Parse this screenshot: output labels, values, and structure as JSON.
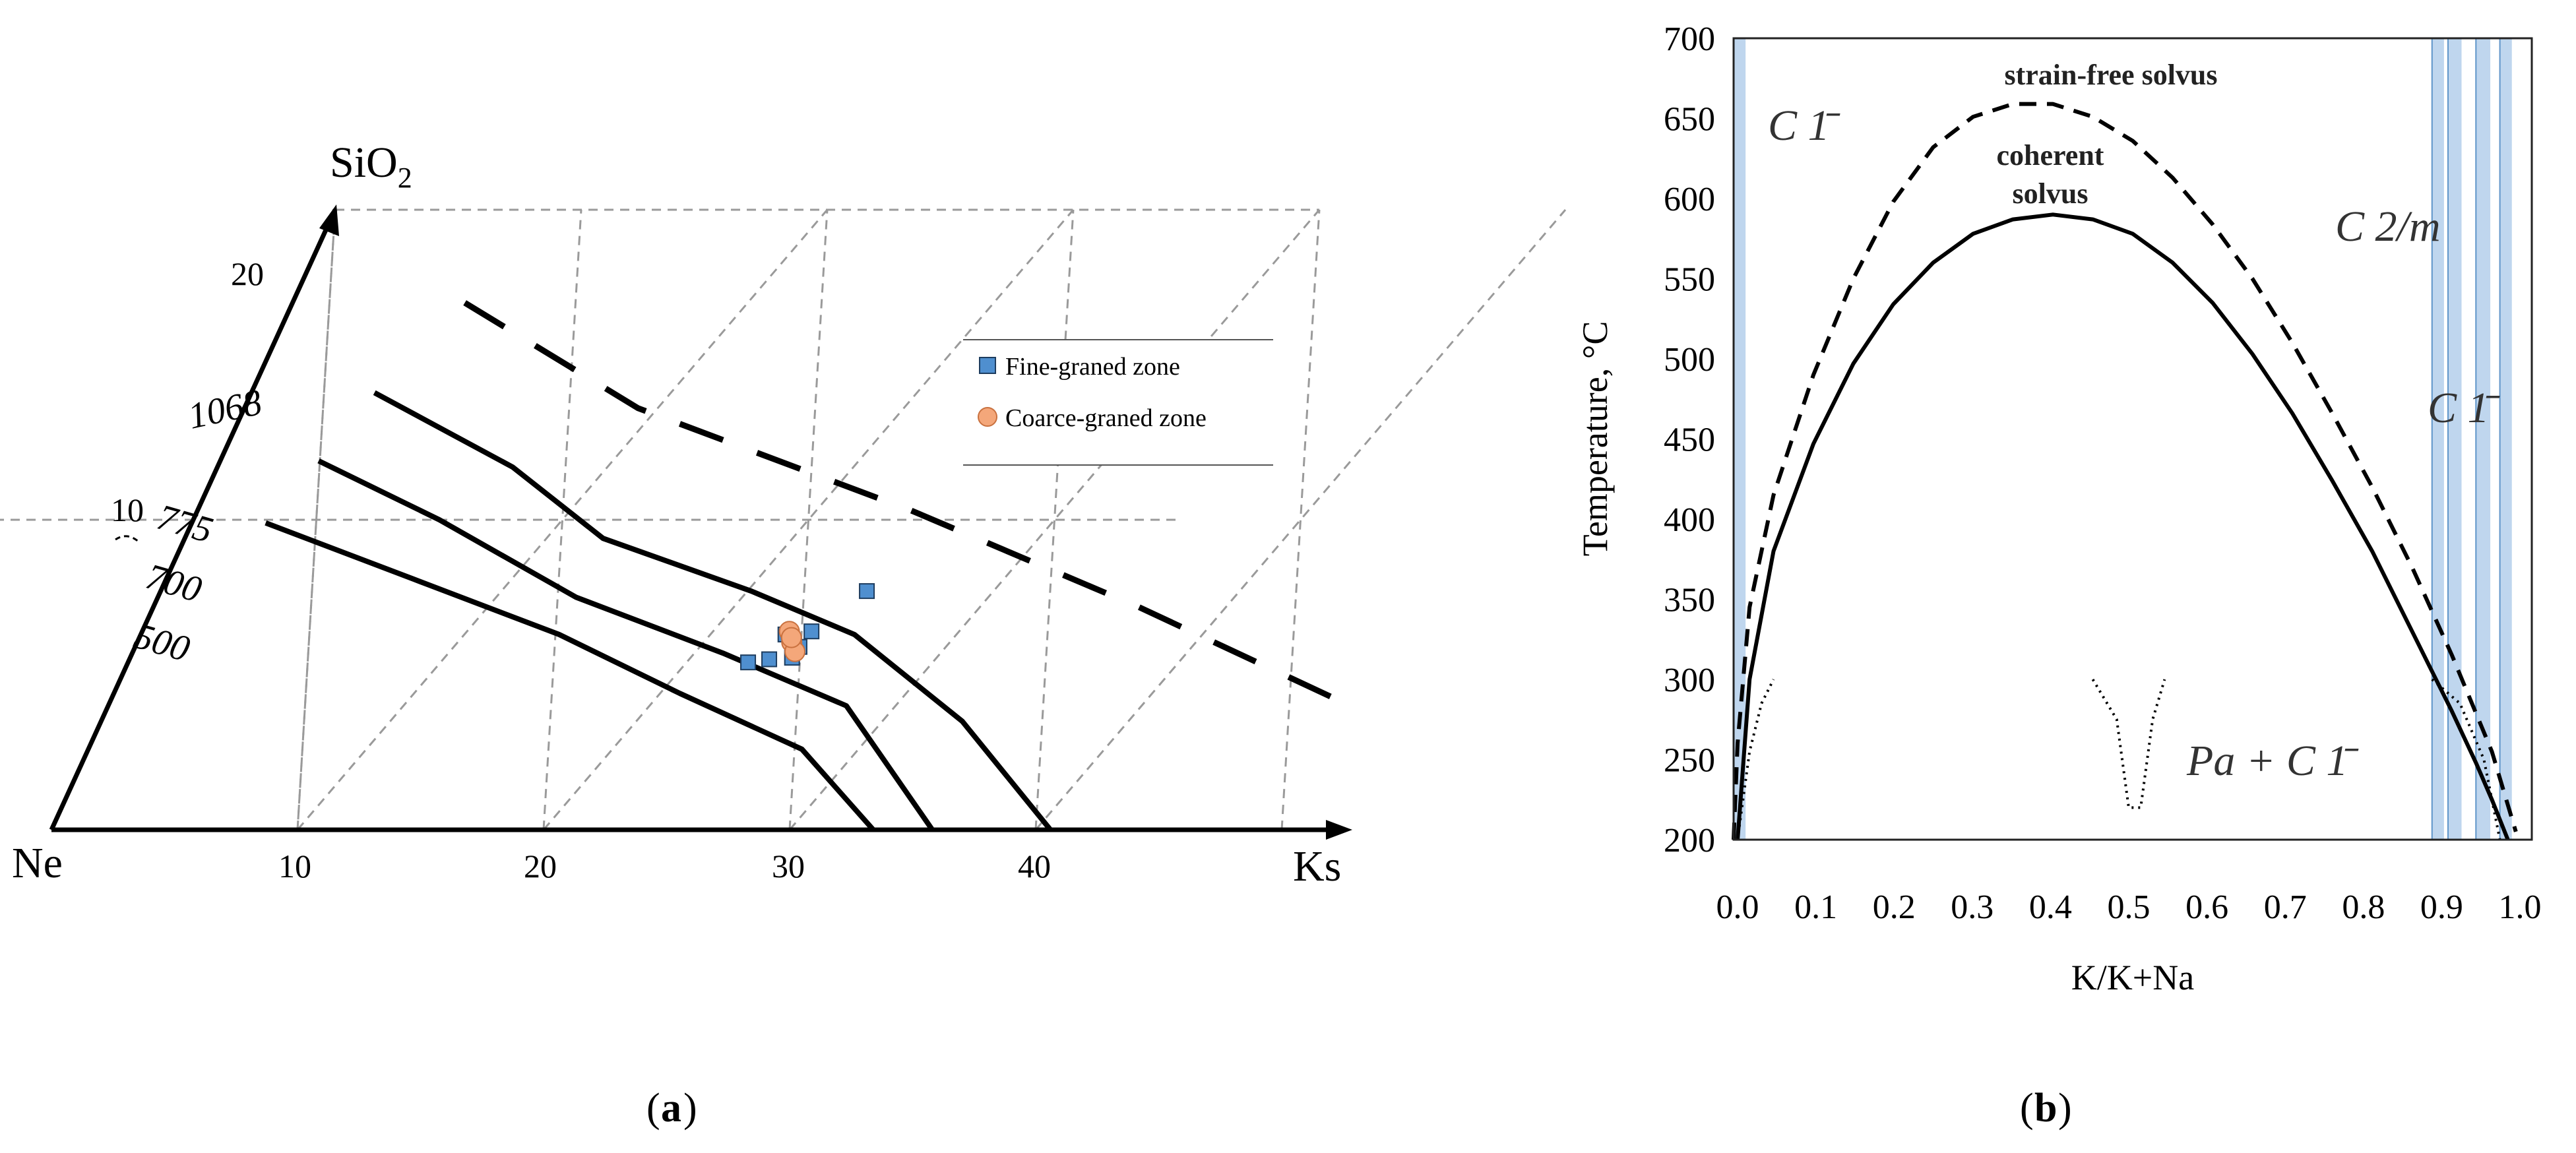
{
  "panel_a": {
    "caption_open": "(",
    "caption_letter": "a",
    "caption_close": ")",
    "apex_label": "SiO",
    "apex_sub": "2",
    "left_label": "Ne",
    "right_label": "Ks",
    "left_ticks": [
      "20",
      "10"
    ],
    "bottom_ticks": [
      "10",
      "20",
      "30",
      "40"
    ],
    "legend": [
      {
        "label": "Fine-graned zone",
        "marker": "square",
        "color": "#4f8fcf"
      },
      {
        "label": "Coarce-graned zone",
        "marker": "circle",
        "color": "#f4a77a"
      }
    ]
  },
  "panel_b": {
    "caption_open": "(",
    "caption_letter": "b",
    "caption_close": ")",
    "phase_labels": {
      "c1_left": "C 1̄",
      "c2m": "C 2/m",
      "c1_right": "C 1̄",
      "pa_c1": "Pa + C 1̄"
    },
    "solvus_labels": {
      "strain_free": "strain-free solvus",
      "coherent_line1": "coherent",
      "coherent_line2": "solvus"
    },
    "band_color": "#a9c8e8"
  },
  "chart_data": [
    {
      "type": "scatter",
      "diagram": "ternary Ne–Ks–SiO2",
      "xlabel": "Ks",
      "ylabel": "SiO2",
      "xlim": [
        0,
        50
      ],
      "ylim": [
        0,
        20
      ],
      "isotherms": [
        {
          "label": "1068",
          "style": "dashed",
          "points": [
            [
              7,
              17.0
            ],
            [
              16,
              13.6
            ],
            [
              29,
              10.3
            ],
            [
              40,
              7.2
            ],
            [
              49.5,
              4.3
            ]
          ]
        },
        {
          "label": "775",
          "style": "solid",
          "points": [
            [
              5,
              14.1
            ],
            [
              12,
              11.7
            ],
            [
              17,
              9.4
            ],
            [
              24,
              7.7
            ],
            [
              29,
              6.3
            ],
            [
              35,
              3.5
            ],
            [
              40.6,
              0
            ]
          ]
        },
        {
          "label": "700",
          "style": "solid",
          "points": [
            [
              4,
              11.9
            ],
            [
              10,
              10.0
            ],
            [
              17,
              7.5
            ],
            [
              24,
              5.7
            ],
            [
              30,
              4.0
            ],
            [
              35.8,
              0
            ]
          ]
        },
        {
          "label": "500",
          "style": "solid",
          "points": [
            [
              3,
              9.9
            ],
            [
              10,
              8.1
            ],
            [
              17,
              6.3
            ],
            [
              23,
              4.4
            ],
            [
              29,
              2.6
            ],
            [
              33.4,
              0
            ]
          ]
        }
      ],
      "series": [
        {
          "name": "Fine-graned zone",
          "marker": "square",
          "color": "#4f8fcf",
          "points": [
            [
              25.2,
              5.4
            ],
            [
              26.0,
              5.5
            ],
            [
              26.9,
              5.55
            ],
            [
              27.2,
              6.4
            ],
            [
              27.0,
              5.9
            ],
            [
              26.2,
              6.3
            ],
            [
              28.7,
              7.7
            ]
          ]
        },
        {
          "name": "Coarce-graned zone",
          "marker": "circle",
          "color": "#f4a77a",
          "points": [
            [
              26.3,
              6.4
            ],
            [
              26.6,
              6.05
            ],
            [
              26.9,
              5.75
            ],
            [
              26.5,
              6.2
            ]
          ]
        }
      ]
    },
    {
      "type": "line",
      "diagram": "alkali feldspar solvus",
      "xlabel": "K/K+Na",
      "ylabel": "Temperature, °C",
      "xlim": [
        0,
        1
      ],
      "ylim": [
        200,
        700
      ],
      "x_ticks": [
        "0.0",
        "0.1",
        "0.2",
        "0.3",
        "0.4",
        "0.5",
        "0.6",
        "0.7",
        "0.8",
        "0.9",
        "1.0"
      ],
      "y_ticks": [
        "200",
        "250",
        "300",
        "350",
        "400",
        "450",
        "500",
        "550",
        "600",
        "650",
        "700"
      ],
      "series": [
        {
          "name": "coherent solvus",
          "style": "solid",
          "x": [
            0.005,
            0.02,
            0.05,
            0.1,
            0.15,
            0.2,
            0.25,
            0.3,
            0.35,
            0.4,
            0.45,
            0.5,
            0.55,
            0.6,
            0.65,
            0.7,
            0.75,
            0.8,
            0.85,
            0.9,
            0.93,
            0.95,
            0.97
          ],
          "y": [
            200,
            300,
            380,
            447,
            497,
            534,
            560,
            578,
            587,
            590,
            587,
            578,
            560,
            535,
            503,
            466,
            424,
            380,
            330,
            280,
            248,
            225,
            200
          ]
        },
        {
          "name": "strain-free solvus",
          "style": "dashed",
          "x": [
            0.0,
            0.005,
            0.02,
            0.05,
            0.1,
            0.15,
            0.2,
            0.25,
            0.3,
            0.35,
            0.4,
            0.45,
            0.5,
            0.55,
            0.6,
            0.65,
            0.7,
            0.75,
            0.8,
            0.85,
            0.9,
            0.95,
            0.98
          ],
          "y": [
            200,
            260,
            345,
            415,
            490,
            550,
            598,
            632,
            651,
            659,
            659,
            651,
            636,
            613,
            584,
            550,
            510,
            466,
            420,
            370,
            315,
            255,
            205
          ]
        },
        {
          "name": "spinodal left",
          "style": "dotted",
          "x": [
            0.005,
            0.02,
            0.035,
            0.05
          ],
          "y": [
            200,
            255,
            285,
            300
          ]
        },
        {
          "name": "spinodal middle",
          "style": "dotted",
          "x": [
            0.45,
            0.48,
            0.495,
            0.51,
            0.525,
            0.54
          ],
          "y": [
            300,
            275,
            220,
            220,
            275,
            300
          ]
        },
        {
          "name": "spinodal right",
          "style": "dotted",
          "x": [
            0.875,
            0.91,
            0.94,
            0.96
          ],
          "y": [
            300,
            285,
            250,
            200
          ]
        }
      ],
      "phase_bands_x": [
        [
          0.0,
          0.015
        ],
        [
          0.875,
          0.89
        ],
        [
          0.895,
          0.912
        ],
        [
          0.93,
          0.948
        ],
        [
          0.96,
          0.975
        ]
      ],
      "grid": false,
      "legend": "none"
    }
  ]
}
